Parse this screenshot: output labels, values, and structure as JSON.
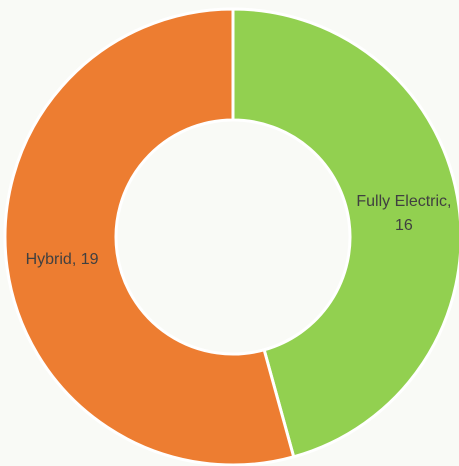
{
  "chart_data": {
    "type": "donut",
    "categories": [
      "Fully Electric",
      "Hybrid"
    ],
    "values": [
      16,
      19
    ],
    "value_labels": [
      "Fully Electric, 16",
      "Hybrid, 19"
    ],
    "colors": [
      "#92d050",
      "#ed7d31"
    ]
  }
}
